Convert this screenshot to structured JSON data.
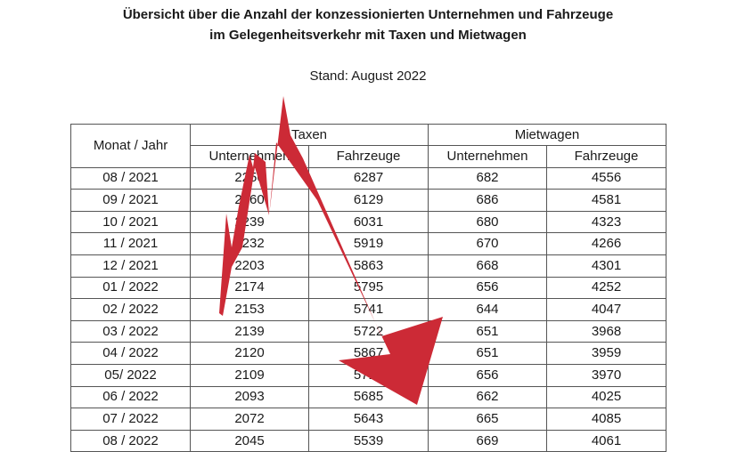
{
  "title_line1": "Übersicht über die Anzahl der konzessionierten Unternehmen und Fahrzeuge",
  "title_line2": "im Gelegenheitsverkehr mit Taxen und Mietwagen",
  "stand": "Stand: August 2022",
  "table": {
    "header_period": "Monat / Jahr",
    "group_taxi": "Taxen",
    "group_mietwagen": "Mietwagen",
    "sub_unternehmen": "Unternehmen",
    "sub_fahrzeuge": "Fahrzeuge",
    "rows": [
      {
        "period": "08 / 2021",
        "taxi_u": "2250",
        "taxi_f": "6287",
        "miet_u": "682",
        "miet_f": "4556"
      },
      {
        "period": "09 / 2021",
        "taxi_u": "2260",
        "taxi_f": "6129",
        "miet_u": "686",
        "miet_f": "4581"
      },
      {
        "period": "10 / 2021",
        "taxi_u": "2239",
        "taxi_f": "6031",
        "miet_u": "680",
        "miet_f": "4323"
      },
      {
        "period": "11 / 2021",
        "taxi_u": "2232",
        "taxi_f": "5919",
        "miet_u": "670",
        "miet_f": "4266"
      },
      {
        "period": "12 / 2021",
        "taxi_u": "2203",
        "taxi_f": "5863",
        "miet_u": "668",
        "miet_f": "4301"
      },
      {
        "period": "01 / 2022",
        "taxi_u": "2174",
        "taxi_f": "5795",
        "miet_u": "656",
        "miet_f": "4252"
      },
      {
        "period": "02 / 2022",
        "taxi_u": "2153",
        "taxi_f": "5741",
        "miet_u": "644",
        "miet_f": "4047"
      },
      {
        "period": "03 / 2022",
        "taxi_u": "2139",
        "taxi_f": "5722",
        "miet_u": "651",
        "miet_f": "3968"
      },
      {
        "period": "04 / 2022",
        "taxi_u": "2120",
        "taxi_f": "5867",
        "miet_u": "651",
        "miet_f": "3959"
      },
      {
        "period": "05/ 2022",
        "taxi_u": "2109",
        "taxi_f": "5716",
        "miet_u": "656",
        "miet_f": "3970"
      },
      {
        "period": "06 / 2022",
        "taxi_u": "2093",
        "taxi_f": "5685",
        "miet_u": "662",
        "miet_f": "4025"
      },
      {
        "period": "07 / 2022",
        "taxi_u": "2072",
        "taxi_f": "5643",
        "miet_u": "665",
        "miet_f": "4085"
      },
      {
        "period": "08 / 2022",
        "taxi_u": "2045",
        "taxi_f": "5539",
        "miet_u": "669",
        "miet_f": "4061"
      }
    ]
  },
  "overlay": {
    "arrow_color": "#cc2a36",
    "arrow_icon": "red-downward-trend-arrow-icon"
  }
}
